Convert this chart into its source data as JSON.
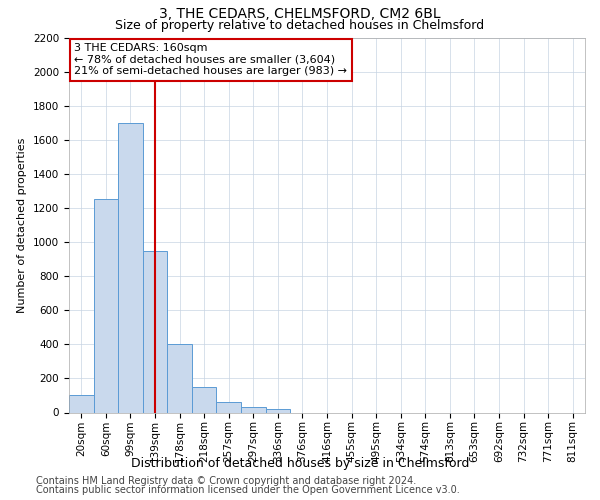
{
  "title": "3, THE CEDARS, CHELMSFORD, CM2 6BL",
  "subtitle": "Size of property relative to detached houses in Chelmsford",
  "xlabel": "Distribution of detached houses by size in Chelmsford",
  "ylabel": "Number of detached properties",
  "categories": [
    "20sqm",
    "60sqm",
    "99sqm",
    "139sqm",
    "178sqm",
    "218sqm",
    "257sqm",
    "297sqm",
    "336sqm",
    "376sqm",
    "416sqm",
    "455sqm",
    "495sqm",
    "534sqm",
    "574sqm",
    "613sqm",
    "653sqm",
    "692sqm",
    "732sqm",
    "771sqm",
    "811sqm"
  ],
  "values": [
    100,
    1250,
    1700,
    950,
    400,
    150,
    60,
    30,
    20,
    0,
    0,
    0,
    0,
    0,
    0,
    0,
    0,
    0,
    0,
    0,
    0
  ],
  "bar_color": "#c9d9ed",
  "bar_edge_color": "#5b9bd5",
  "vline_position": 3.5,
  "vline_color": "#cc0000",
  "annotation_box_text": "3 THE CEDARS: 160sqm\n← 78% of detached houses are smaller (3,604)\n21% of semi-detached houses are larger (983) →",
  "box_edge_color": "#cc0000",
  "ylim": [
    0,
    2200
  ],
  "yticks": [
    0,
    200,
    400,
    600,
    800,
    1000,
    1200,
    1400,
    1600,
    1800,
    2000,
    2200
  ],
  "footer_line1": "Contains HM Land Registry data © Crown copyright and database right 2024.",
  "footer_line2": "Contains public sector information licensed under the Open Government Licence v3.0.",
  "background_color": "#ffffff",
  "grid_color": "#c8d4e3",
  "title_fontsize": 10,
  "subtitle_fontsize": 9,
  "ylabel_fontsize": 8,
  "xlabel_fontsize": 9,
  "tick_fontsize": 7.5,
  "annotation_fontsize": 8,
  "footer_fontsize": 7
}
